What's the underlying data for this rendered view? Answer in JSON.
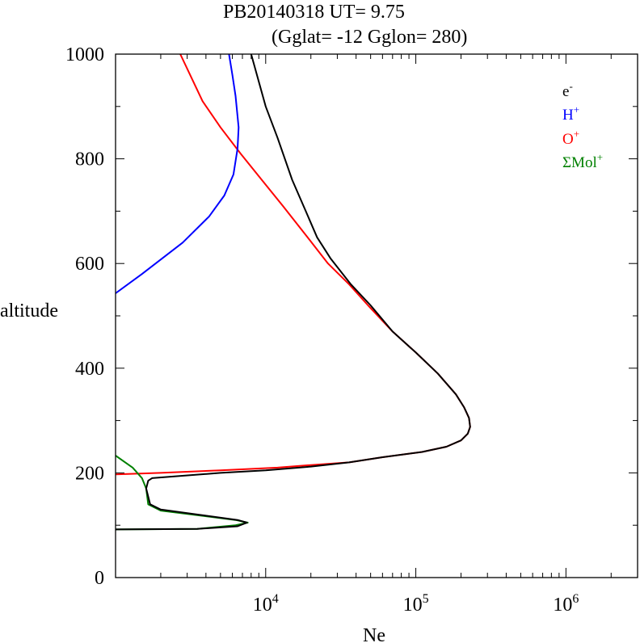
{
  "chart_data": {
    "type": "line",
    "title_line1": "PB20140318   UT=  9.75",
    "title_line2": "(Gglat= -12   Gglon=  280)",
    "xlabel": "Ne",
    "ylabel": "altitude",
    "x_scale": "log",
    "xlim": [
      1000,
      3000000
    ],
    "ylim": [
      0,
      1000
    ],
    "x_tick_base": "10",
    "x_ticks": [
      {
        "exp": "4",
        "value": 10000
      },
      {
        "exp": "5",
        "value": 100000
      },
      {
        "exp": "6",
        "value": 1000000
      }
    ],
    "y_ticks": [
      {
        "label": "0",
        "value": 0
      },
      {
        "label": "200",
        "value": 200
      },
      {
        "label": "400",
        "value": 400
      },
      {
        "label": "600",
        "value": 600
      },
      {
        "label": "800",
        "value": 800
      },
      {
        "label": "1000",
        "value": 1000
      }
    ],
    "legend": [
      {
        "base": "e",
        "sup": "-",
        "color": "#000000"
      },
      {
        "base": "H",
        "sup": "+",
        "color": "#0000ff"
      },
      {
        "base": "O",
        "sup": "+",
        "color": "#ff0000"
      },
      {
        "base": "ΣMol",
        "sup": "+",
        "color": "#008000"
      }
    ],
    "series": [
      {
        "name": "O+",
        "color": "#ff0000",
        "points": [
          [
            1000,
            197
          ],
          [
            2000,
            200
          ],
          [
            5000,
            205
          ],
          [
            12000,
            210
          ],
          [
            20000,
            215
          ],
          [
            36000,
            220
          ],
          [
            60000,
            230
          ],
          [
            110000,
            240
          ],
          [
            160000,
            250
          ],
          [
            200000,
            262
          ],
          [
            222000,
            275
          ],
          [
            230000,
            288
          ],
          [
            226000,
            305
          ],
          [
            210000,
            325
          ],
          [
            185000,
            350
          ],
          [
            140000,
            390
          ],
          [
            100000,
            430
          ],
          [
            70000,
            470
          ],
          [
            48000,
            520
          ],
          [
            36000,
            560
          ],
          [
            26000,
            600
          ],
          [
            19000,
            650
          ],
          [
            13000,
            710
          ],
          [
            9400,
            760
          ],
          [
            6800,
            810
          ],
          [
            5000,
            860
          ],
          [
            3800,
            910
          ],
          [
            2700,
            1000
          ]
        ]
      },
      {
        "name": "e-",
        "color": "#000000",
        "points": [
          [
            1000,
            92
          ],
          [
            3500,
            93
          ],
          [
            6500,
            98
          ],
          [
            7500,
            105
          ],
          [
            6500,
            110
          ],
          [
            2000,
            130
          ],
          [
            1700,
            140
          ],
          [
            1600,
            170
          ],
          [
            1650,
            185
          ],
          [
            1750,
            190
          ],
          [
            5000,
            200
          ],
          [
            10000,
            205
          ],
          [
            20000,
            212
          ],
          [
            36000,
            220
          ],
          [
            60000,
            230
          ],
          [
            110000,
            240
          ],
          [
            160000,
            250
          ],
          [
            200000,
            262
          ],
          [
            222000,
            275
          ],
          [
            230000,
            288
          ],
          [
            226000,
            305
          ],
          [
            210000,
            325
          ],
          [
            185000,
            350
          ],
          [
            140000,
            390
          ],
          [
            100000,
            430
          ],
          [
            70000,
            470
          ],
          [
            50000,
            520
          ],
          [
            37000,
            560
          ],
          [
            27000,
            610
          ],
          [
            22000,
            650
          ],
          [
            18500,
            700
          ],
          [
            15000,
            760
          ],
          [
            12000,
            840
          ],
          [
            10000,
            900
          ],
          [
            8000,
            1000
          ]
        ]
      },
      {
        "name": "H+",
        "color": "#0000ff",
        "points": [
          [
            1000,
            543
          ],
          [
            1500,
            580
          ],
          [
            2800,
            640
          ],
          [
            4200,
            690
          ],
          [
            5300,
            730
          ],
          [
            6100,
            770
          ],
          [
            6500,
            820
          ],
          [
            6600,
            860
          ],
          [
            6300,
            920
          ],
          [
            6000,
            960
          ],
          [
            5700,
            1000
          ]
        ]
      },
      {
        "name": "ΣMol+",
        "color": "#008000",
        "points": [
          [
            1000,
            233
          ],
          [
            1300,
            210
          ],
          [
            1500,
            190
          ],
          [
            1600,
            170
          ],
          [
            1650,
            140
          ],
          [
            2000,
            128
          ],
          [
            6300,
            110
          ],
          [
            7600,
            105
          ],
          [
            6300,
            100
          ],
          [
            3500,
            93
          ],
          [
            1000,
            92
          ]
        ]
      }
    ]
  }
}
